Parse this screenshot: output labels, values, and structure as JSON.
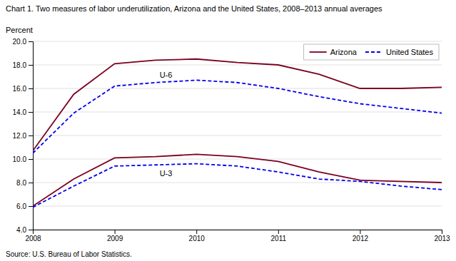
{
  "chart_data": {
    "type": "line",
    "title": "Chart 1. Two measures of labor underutilization, Arizona and the United States, 2008–2013  annual averages",
    "ylabel": "Percent",
    "source": "Source: U.S. Bureau of Labor Statistics.",
    "x": [
      2008,
      2008.5,
      2009,
      2009.5,
      2010,
      2010.5,
      2011,
      2011.5,
      2012,
      2012.5,
      2013
    ],
    "series": [
      {
        "name": "Arizona",
        "color": "#7B0020",
        "line_style": "solid",
        "values": [
          10.7,
          15.5,
          18.1,
          18.4,
          18.5,
          18.2,
          18.0,
          17.2,
          16.0,
          16.0,
          16.1
        ]
      },
      {
        "name": "United States",
        "color": "#0000EE",
        "line_style": "dashed",
        "values": [
          10.5,
          13.9,
          16.2,
          16.5,
          16.7,
          16.5,
          16.0,
          15.3,
          14.7,
          14.3,
          13.9
        ]
      },
      {
        "color": "#7B0020",
        "line_style": "solid",
        "values": [
          6.0,
          8.3,
          10.1,
          10.2,
          10.4,
          10.2,
          9.8,
          8.9,
          8.2,
          8.1,
          8.0
        ]
      },
      {
        "color": "#0000EE",
        "line_style": "dashed",
        "values": [
          5.9,
          7.7,
          9.4,
          9.5,
          9.6,
          9.4,
          8.9,
          8.3,
          8.1,
          7.7,
          7.4
        ]
      }
    ],
    "annotations": [
      {
        "text": "U-6",
        "x": 2009.55,
        "y": 16.9
      },
      {
        "text": "U-3",
        "x": 2009.55,
        "y": 8.55
      }
    ],
    "xlim": [
      2008,
      2013
    ],
    "xticks": [
      2008,
      2009,
      2010,
      2011,
      2012,
      2013
    ],
    "ylim": [
      4.0,
      20.0
    ],
    "yticks": [
      {
        "value": 4.0,
        "label": "4.0"
      },
      {
        "value": 6.0,
        "label": "6.0"
      },
      {
        "value": 8.0,
        "label": "8.0"
      },
      {
        "value": 10.0,
        "label": "10.0"
      },
      {
        "value": 12.0,
        "label": "12.0"
      },
      {
        "value": 14.0,
        "label": "14.0"
      },
      {
        "value": 16.0,
        "label": "16.0"
      },
      {
        "value": 18.0,
        "label": "18.0"
      },
      {
        "value": 20.0,
        "label": "20.0"
      }
    ],
    "grid": true,
    "legend": "upper right"
  }
}
